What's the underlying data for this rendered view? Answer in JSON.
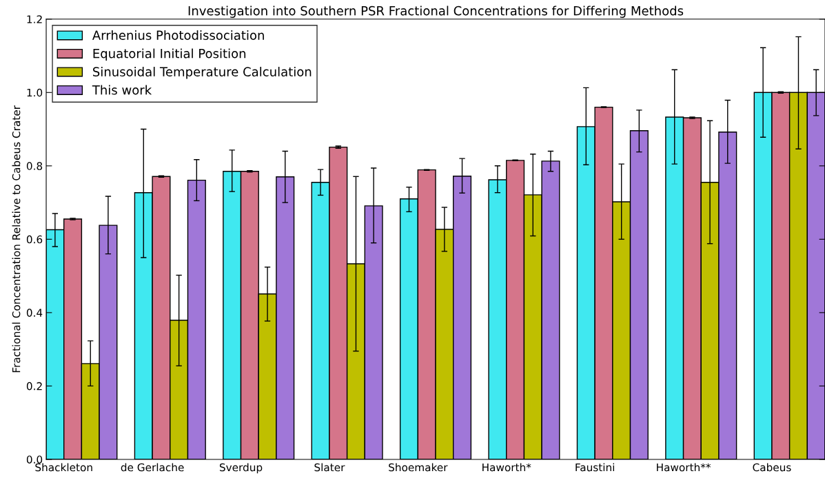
{
  "chart_data": {
    "type": "bar",
    "title": "Investigation into Southern PSR Fractional Concentrations for Differing Methods",
    "ylabel": "Fractional Concentration Relative to Cabeus Crater",
    "categories": [
      "Shackleton",
      "de Gerlache",
      "Sverdup",
      "Slater",
      "Shoemaker",
      "Haworth*",
      "Faustini",
      "Haworth**",
      "Cabeus"
    ],
    "series": [
      {
        "name": "Arrhenius Photodissociation",
        "color": "#40e8f0",
        "values": [
          0.626,
          0.727,
          0.785,
          0.755,
          0.71,
          0.762,
          0.907,
          0.933,
          1.0
        ],
        "errors": [
          [
            0.58,
            0.67
          ],
          [
            0.55,
            0.9
          ],
          [
            0.73,
            0.843
          ],
          [
            0.72,
            0.79
          ],
          [
            0.675,
            0.742
          ],
          [
            0.727,
            0.8
          ],
          [
            0.803,
            1.013
          ],
          [
            0.805,
            1.062
          ],
          [
            0.878,
            1.122
          ]
        ]
      },
      {
        "name": "Equatorial Initial Position",
        "color": "#d5758a",
        "values": [
          0.655,
          0.771,
          0.785,
          0.851,
          0.789,
          0.815,
          0.96,
          0.931,
          1.0
        ],
        "errors": [
          0.002,
          0.002,
          0.002,
          0.003,
          0.001,
          0.001,
          0.001,
          0.002,
          0.002
        ]
      },
      {
        "name": "Sinusoidal Temperature Calculation",
        "color": "#bfbf00",
        "values": [
          0.261,
          0.379,
          0.451,
          0.533,
          0.627,
          0.721,
          0.702,
          0.755,
          1.0
        ],
        "errors": [
          [
            0.2,
            0.323
          ],
          [
            0.255,
            0.502
          ],
          [
            0.377,
            0.524
          ],
          [
            0.295,
            0.771
          ],
          [
            0.567,
            0.687
          ],
          [
            0.609,
            0.832
          ],
          [
            0.6,
            0.805
          ],
          [
            0.588,
            0.923
          ],
          [
            0.846,
            1.152
          ]
        ]
      },
      {
        "name": "This work",
        "color": "#a077d8",
        "values": [
          0.638,
          0.761,
          0.77,
          0.691,
          0.772,
          0.813,
          0.896,
          0.892,
          1.0
        ],
        "errors": [
          [
            0.56,
            0.717
          ],
          [
            0.705,
            0.817
          ],
          [
            0.7,
            0.84
          ],
          [
            0.59,
            0.794
          ],
          [
            0.726,
            0.82
          ],
          [
            0.785,
            0.84
          ],
          [
            0.838,
            0.952
          ],
          [
            0.807,
            0.979
          ],
          [
            0.937,
            1.062
          ]
        ]
      }
    ],
    "ylim": [
      0,
      1.2
    ],
    "yticks": [
      {
        "value": 0,
        "label": "0.0"
      },
      0.2,
      0.4,
      0.6,
      0.8,
      {
        "value": 1.0,
        "label": "1.0"
      },
      1.2
    ],
    "grid": false,
    "legend": "top left"
  }
}
